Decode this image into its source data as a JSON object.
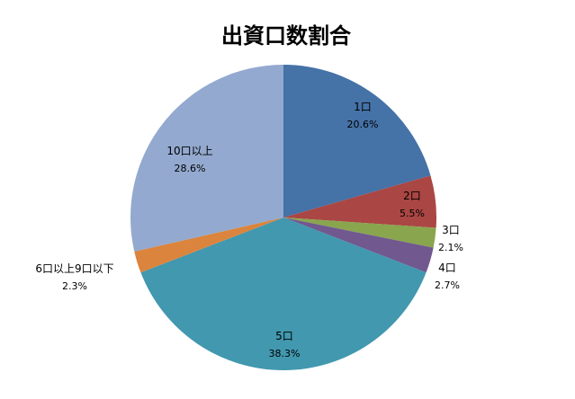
{
  "chart_data": {
    "type": "pie",
    "title": "出資口数割合",
    "start_angle_deg": 0,
    "direction": "clockwise",
    "slices": [
      {
        "label": "1口",
        "value": 20.6,
        "value_label": "20.6%",
        "color": "#4572A7"
      },
      {
        "label": "2口",
        "value": 5.5,
        "value_label": "5.5%",
        "color": "#AA4643"
      },
      {
        "label": "3口",
        "value": 2.1,
        "value_label": "2.1%",
        "color": "#89A54E"
      },
      {
        "label": "4口",
        "value": 2.7,
        "value_label": "2.7%",
        "color": "#71588F"
      },
      {
        "label": "5口",
        "value": 38.3,
        "value_label": "38.3%",
        "color": "#4198AF"
      },
      {
        "label": "6口以上9口以下",
        "value": 2.3,
        "value_label": "2.3%",
        "color": "#DB843D"
      },
      {
        "label": "10口以上",
        "value": 28.6,
        "value_label": "28.6%",
        "color": "#93A9CF"
      }
    ]
  }
}
